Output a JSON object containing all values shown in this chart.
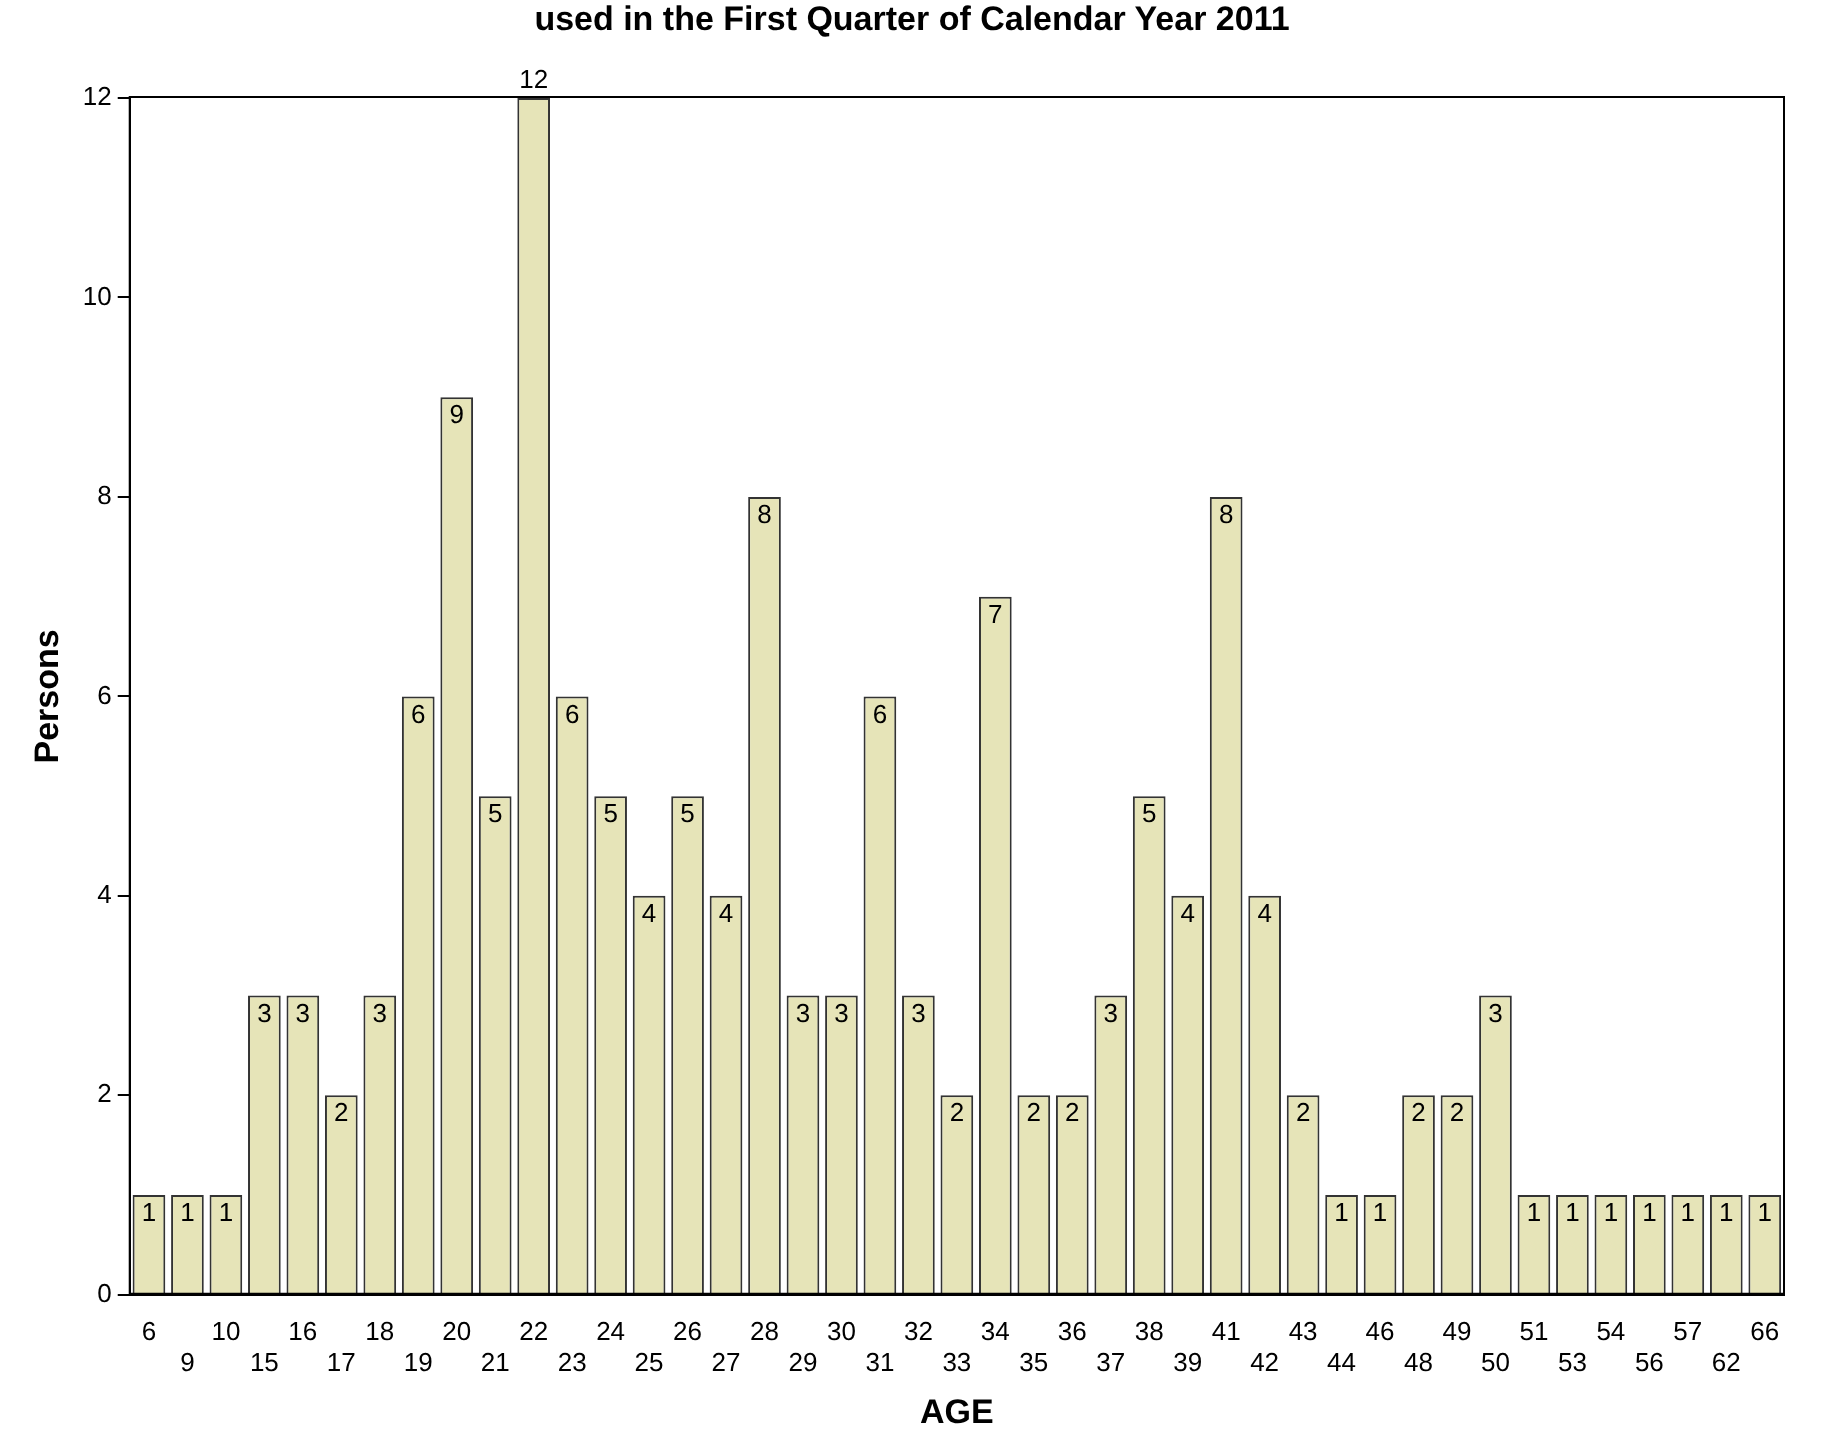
{
  "chart_data": {
    "type": "bar",
    "title": "used in the First Quarter of Calendar Year 2011",
    "xlabel": "AGE",
    "ylabel": "Persons",
    "categories": [
      "6",
      "9",
      "10",
      "15",
      "16",
      "17",
      "18",
      "19",
      "20",
      "21",
      "22",
      "23",
      "24",
      "25",
      "26",
      "27",
      "28",
      "29",
      "30",
      "31",
      "32",
      "33",
      "34",
      "35",
      "36",
      "37",
      "38",
      "39",
      "41",
      "42",
      "43",
      "44",
      "46",
      "48",
      "49",
      "50",
      "51",
      "53",
      "54",
      "56",
      "57",
      "62",
      "66"
    ],
    "values": [
      1,
      1,
      1,
      3,
      3,
      2,
      3,
      6,
      9,
      5,
      12,
      6,
      5,
      4,
      5,
      4,
      8,
      3,
      3,
      6,
      3,
      2,
      7,
      2,
      2,
      3,
      5,
      4,
      8,
      4,
      2,
      1,
      1,
      2,
      2,
      3,
      1,
      1,
      1,
      1,
      1,
      1,
      1
    ],
    "color": "#e6e4b8",
    "ylim": [
      0,
      12
    ],
    "yticks": [
      0,
      2,
      4,
      6,
      8,
      10,
      12
    ],
    "grid": false,
    "legend": false,
    "data_labels": true
  }
}
